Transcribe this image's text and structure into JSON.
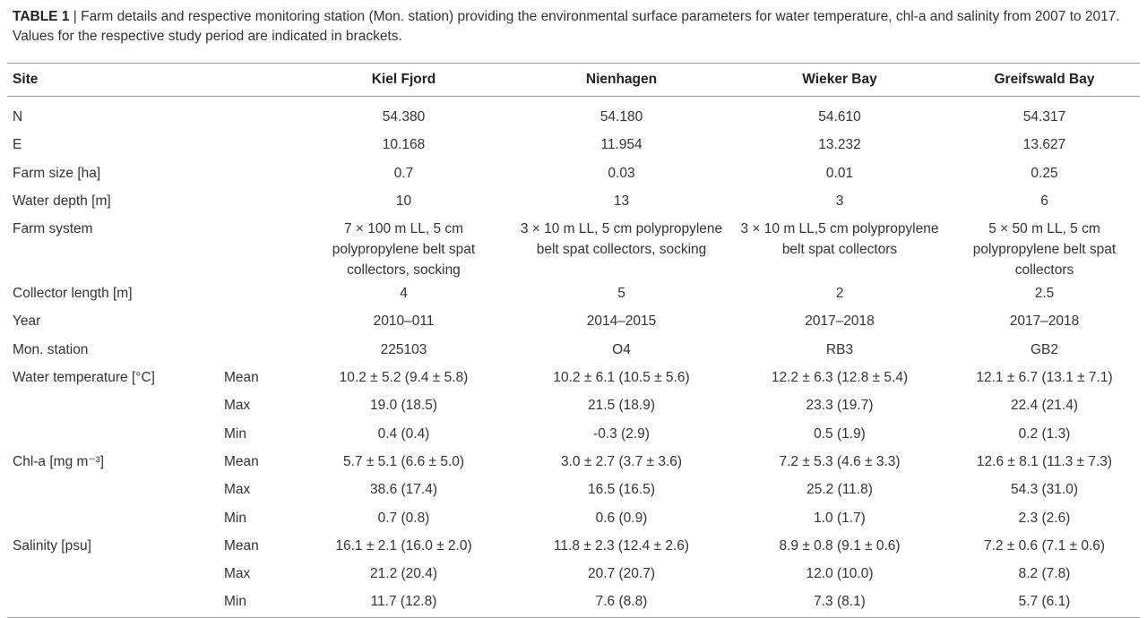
{
  "caption": {
    "label": "TABLE 1",
    "text": "| Farm details and respective monitoring station (Mon. station) providing the environmental surface parameters for water temperature, chl-a and salinity from 2007 to 2017. Values for the respective study period are indicated in brackets."
  },
  "table": {
    "header": {
      "site": "Site",
      "columns": [
        "Kiel Fjord",
        "Nienhagen",
        "Wieker Bay",
        "Greifswald Bay"
      ]
    },
    "rows": [
      {
        "label": "N",
        "values": [
          "54.380",
          "54.180",
          "54.610",
          "54.317"
        ]
      },
      {
        "label": "E",
        "values": [
          "10.168",
          "11.954",
          "13.232",
          "13.627"
        ]
      },
      {
        "label": "Farm size [ha]",
        "values": [
          "0.7",
          "0.03",
          "0.01",
          "0.25"
        ]
      },
      {
        "label": "Water depth [m]",
        "values": [
          "10",
          "13",
          "3",
          "6"
        ]
      },
      {
        "label": "Farm system",
        "values": [
          "7 × 100 m LL, 5 cm polypropylene belt spat collectors, socking",
          "3 × 10 m LL, 5 cm polypropylene belt spat collectors, socking",
          "3 × 10 m LL,5 cm polypropylene belt spat collectors",
          "5 × 50 m LL, 5 cm polypropylene belt spat collectors"
        ]
      },
      {
        "label": "Collector length [m]",
        "values": [
          "4",
          "5",
          "2",
          "2.5"
        ]
      },
      {
        "label": "Year",
        "values": [
          "2010–011",
          "2014–2015",
          "2017–2018",
          "2017–2018"
        ]
      },
      {
        "label": "Mon. station",
        "values": [
          "225103",
          "O4",
          "RB3",
          "GB2"
        ]
      },
      {
        "label": "Water temperature [°C]",
        "sub": "Mean",
        "values": [
          "10.2 ± 5.2 (9.4 ± 5.8)",
          "10.2 ± 6.1 (10.5 ± 5.6)",
          "12.2 ± 6.3 (12.8 ± 5.4)",
          "12.1 ± 6.7 (13.1 ± 7.1)"
        ]
      },
      {
        "sub": "Max",
        "values": [
          "19.0 (18.5)",
          "21.5 (18.9)",
          "23.3 (19.7)",
          "22.4 (21.4)"
        ]
      },
      {
        "sub": "Min",
        "values": [
          "0.4 (0.4)",
          "-0.3 (2.9)",
          "0.5 (1.9)",
          "0.2 (1.3)"
        ]
      },
      {
        "label": "Chl-a [mg m⁻³]",
        "sub": "Mean",
        "values": [
          "5.7 ± 5.1 (6.6 ± 5.0)",
          "3.0 ± 2.7 (3.7 ± 3.6)",
          "7.2 ± 5.3 (4.6 ± 3.3)",
          "12.6 ± 8.1 (11.3 ± 7.3)"
        ]
      },
      {
        "sub": "Max",
        "values": [
          "38.6 (17.4)",
          "16.5 (16.5)",
          "25.2 (11.8)",
          "54.3 (31.0)"
        ]
      },
      {
        "sub": "Min",
        "values": [
          "0.7 (0.8)",
          "0.6 (0.9)",
          "1.0 (1.7)",
          "2.3 (2.6)"
        ]
      },
      {
        "label": "Salinity [psu]",
        "sub": "Mean",
        "values": [
          "16.1 ± 2.1 (16.0 ± 2.0)",
          "11.8 ± 2.3 (12.4 ± 2.6)",
          "8.9 ± 0.8 (9.1 ± 0.6)",
          "7.2 ± 0.6 (7.1 ± 0.6)"
        ]
      },
      {
        "sub": "Max",
        "values": [
          "21.2 (20.4)",
          "20.7 (20.7)",
          "12.0 (10.0)",
          "8.2 (7.8)"
        ]
      },
      {
        "sub": "Min",
        "values": [
          "11.7 (12.8)",
          "7.6 (8.8)",
          "7.3 (8.1)",
          "5.7 (6.1)"
        ]
      }
    ]
  }
}
